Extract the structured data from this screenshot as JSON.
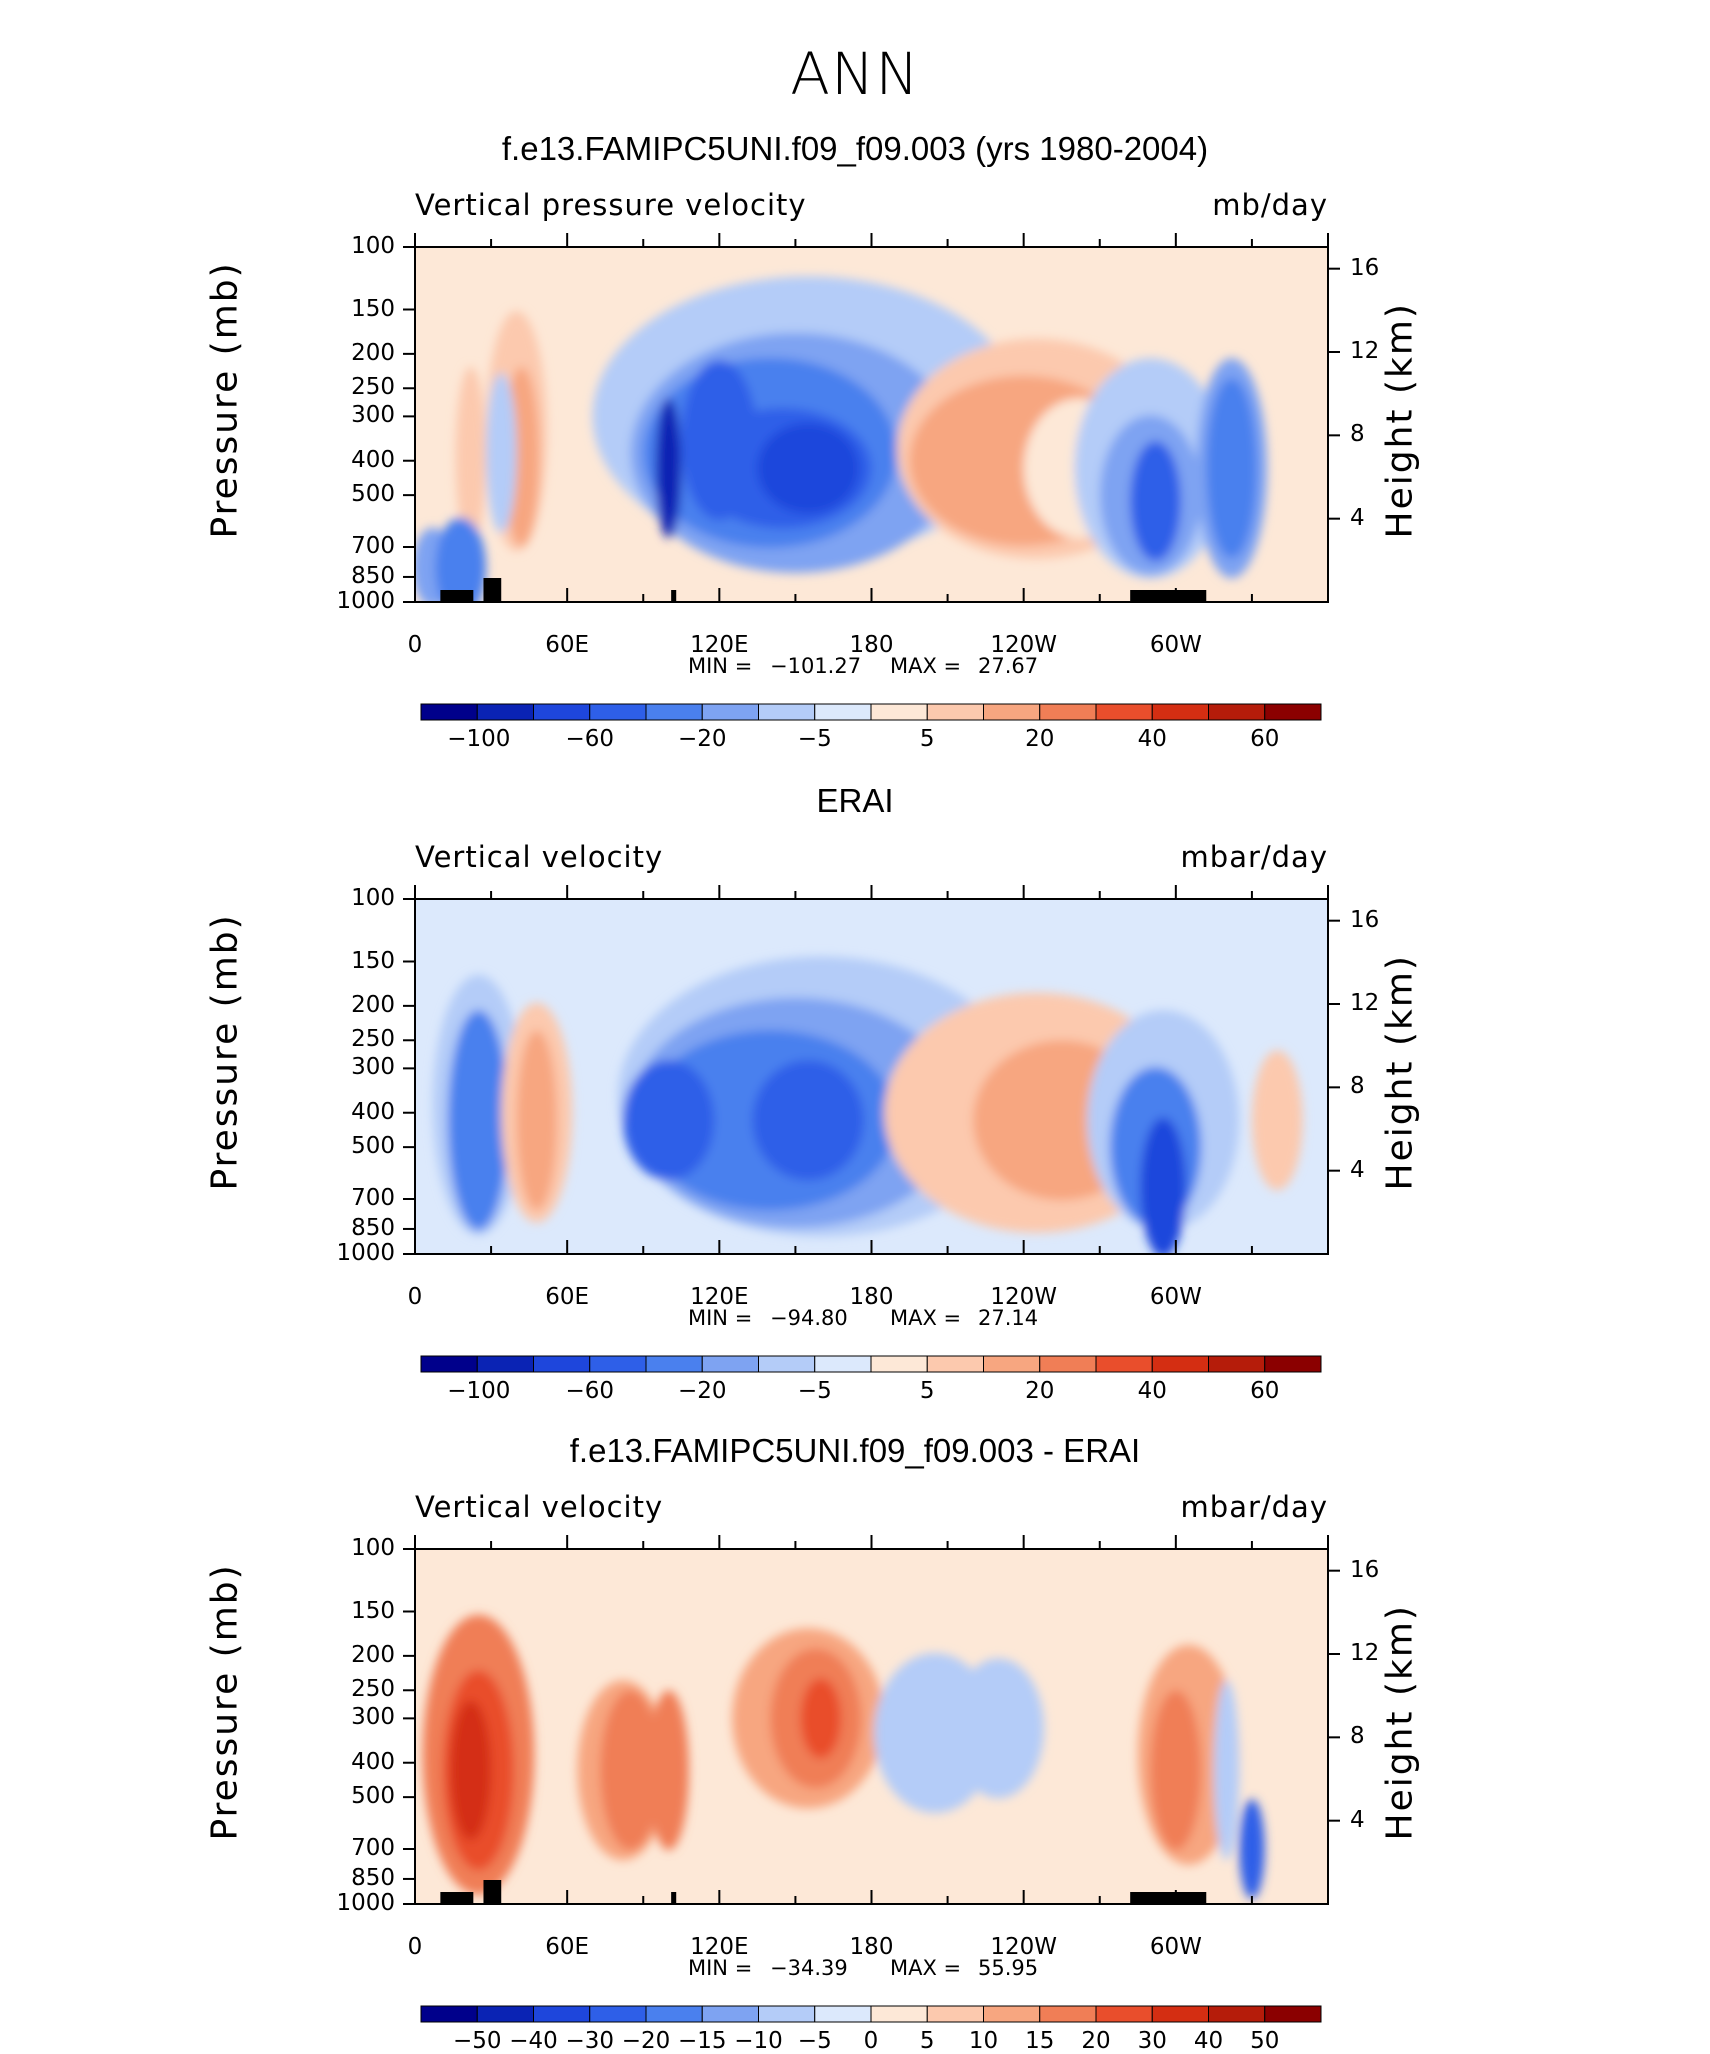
{
  "main_title": "ANN",
  "color_palette": [
    "#00008b",
    "#0a23b4",
    "#1e46dc",
    "#2e5fe8",
    "#4a80ee",
    "#7ea3f2",
    "#b4ccf8",
    "#dce9fc",
    "#fde8d7",
    "#fcc9ae",
    "#f7a680",
    "#f07e56",
    "#e94e2c",
    "#d42e12",
    "#b51c0a",
    "#8b0000"
  ],
  "panels": [
    {
      "title": "f.e13.FAMIPC5UNI.f09_f09.003 (yrs 1980-2004)",
      "left_label": "Vertical pressure velocity",
      "right_label": "mb/day",
      "y_axis_title": "Pressure (mb)",
      "right_axis_title": "Height (km)",
      "pressure_ticks": [
        "100",
        "150",
        "200",
        "250",
        "300",
        "400",
        "500",
        "700",
        "850",
        "1000"
      ],
      "height_ticks": [
        "16",
        "12",
        "8",
        "4"
      ],
      "x_ticks": [
        "0",
        "60E",
        "120E",
        "180",
        "120W",
        "60W"
      ],
      "min_label": "MIN = ",
      "min_value": "−101.27",
      "max_label": "MAX = ",
      "max_value": "27.67",
      "colorbar_labels": [
        "−100",
        "−60",
        "−20",
        "−5",
        "5",
        "20",
        "40",
        "60"
      ]
    },
    {
      "title": "ERAI",
      "left_label": "Vertical velocity",
      "right_label": "mbar/day",
      "y_axis_title": "Pressure (mb)",
      "right_axis_title": "Height (km)",
      "pressure_ticks": [
        "100",
        "150",
        "200",
        "250",
        "300",
        "400",
        "500",
        "700",
        "850",
        "1000"
      ],
      "height_ticks": [
        "16",
        "12",
        "8",
        "4"
      ],
      "x_ticks": [
        "0",
        "60E",
        "120E",
        "180",
        "120W",
        "60W"
      ],
      "min_label": "MIN = ",
      "min_value": "−94.80",
      "max_label": "MAX = ",
      "max_value": "27.14",
      "colorbar_labels": [
        "−100",
        "−60",
        "−20",
        "−5",
        "5",
        "20",
        "40",
        "60"
      ]
    },
    {
      "title": "f.e13.FAMIPC5UNI.f09_f09.003 - ERAI",
      "left_label": "Vertical velocity",
      "right_label": "mbar/day",
      "y_axis_title": "Pressure (mb)",
      "right_axis_title": "Height (km)",
      "pressure_ticks": [
        "100",
        "150",
        "200",
        "250",
        "300",
        "400",
        "500",
        "700",
        "850",
        "1000"
      ],
      "height_ticks": [
        "16",
        "12",
        "8",
        "4"
      ],
      "x_ticks": [
        "0",
        "60E",
        "120E",
        "180",
        "120W",
        "60W"
      ],
      "min_label": "MIN = ",
      "min_value": "−34.39",
      "max_label": "MAX = ",
      "max_value": "55.95",
      "colorbar_labels": [
        "−50",
        "−40",
        "−30",
        "−20",
        "−15",
        "−10",
        "−5",
        "0",
        "5",
        "10",
        "15",
        "20",
        "30",
        "40",
        "50"
      ]
    }
  ],
  "chart_data": [
    {
      "type": "heatmap",
      "title": "f.e13.FAMIPC5UNI.f09_f09.003 (yrs 1980-2004)",
      "xlabel": "",
      "ylabel": "Pressure (mb)",
      "y2label": "Height (km)",
      "y_scale": "log",
      "ylim": [
        1000,
        100
      ],
      "xlim": [
        0,
        360
      ],
      "min": -101.27,
      "max": 27.67,
      "units": "mb/day",
      "levels": [
        -100,
        -80,
        -60,
        -40,
        -20,
        -10,
        -5,
        0,
        5,
        10,
        20,
        30,
        40,
        50,
        60
      ]
    },
    {
      "type": "heatmap",
      "title": "ERAI",
      "xlabel": "",
      "ylabel": "Pressure (mb)",
      "y2label": "Height (km)",
      "y_scale": "log",
      "ylim": [
        1000,
        100
      ],
      "xlim": [
        0,
        360
      ],
      "min": -94.8,
      "max": 27.14,
      "units": "mbar/day",
      "levels": [
        -100,
        -80,
        -60,
        -40,
        -20,
        -10,
        -5,
        0,
        5,
        10,
        20,
        30,
        40,
        50,
        60
      ]
    },
    {
      "type": "heatmap",
      "title": "f.e13.FAMIPC5UNI.f09_f09.003 - ERAI",
      "xlabel": "",
      "ylabel": "Pressure (mb)",
      "y2label": "Height (km)",
      "y_scale": "log",
      "ylim": [
        1000,
        100
      ],
      "xlim": [
        0,
        360
      ],
      "min": -34.39,
      "max": 55.95,
      "units": "mbar/day",
      "levels": [
        -50,
        -40,
        -30,
        -20,
        -15,
        -10,
        -5,
        0,
        5,
        10,
        15,
        20,
        30,
        40,
        50
      ]
    }
  ]
}
